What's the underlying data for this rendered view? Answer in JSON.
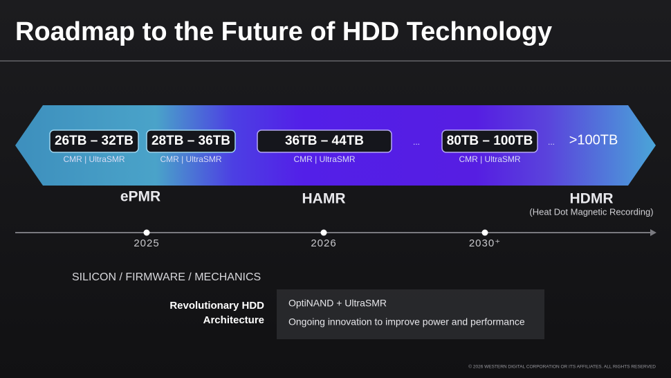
{
  "header": {
    "title": "Roadmap to the Future of HDD Technology"
  },
  "capacities": [
    {
      "range": "26TB – 32TB",
      "formats": "CMR | UltraSMR"
    },
    {
      "range": "28TB – 36TB",
      "formats": "CMR | UltraSMR"
    },
    {
      "range": "36TB – 44TB",
      "formats": "CMR | UltraSMR"
    },
    {
      "range": "80TB – 100TB",
      "formats": "CMR | UltraSMR"
    },
    {
      "range": ">100TB"
    }
  ],
  "ellipses": [
    "...",
    "..."
  ],
  "technologies": [
    {
      "name": "ePMR"
    },
    {
      "name": "HAMR"
    },
    {
      "name": "HDMR",
      "description": "(Heat Dot Magnetic Recording)"
    }
  ],
  "timeline": [
    "2025",
    "2026",
    "2030⁺"
  ],
  "section": {
    "heading": "SILICON / FIRMWARE / MECHANICS",
    "label": [
      "Revolutionary HDD",
      "Architecture"
    ],
    "items": [
      "OptiNAND + UltraSMR",
      "Ongoing innovation to improve power and performance"
    ]
  },
  "footer": "© 2026 WESTERN DIGITAL CORPORATION OR ITS AFFILIATES. ALL RIGHTS RESERVED"
}
